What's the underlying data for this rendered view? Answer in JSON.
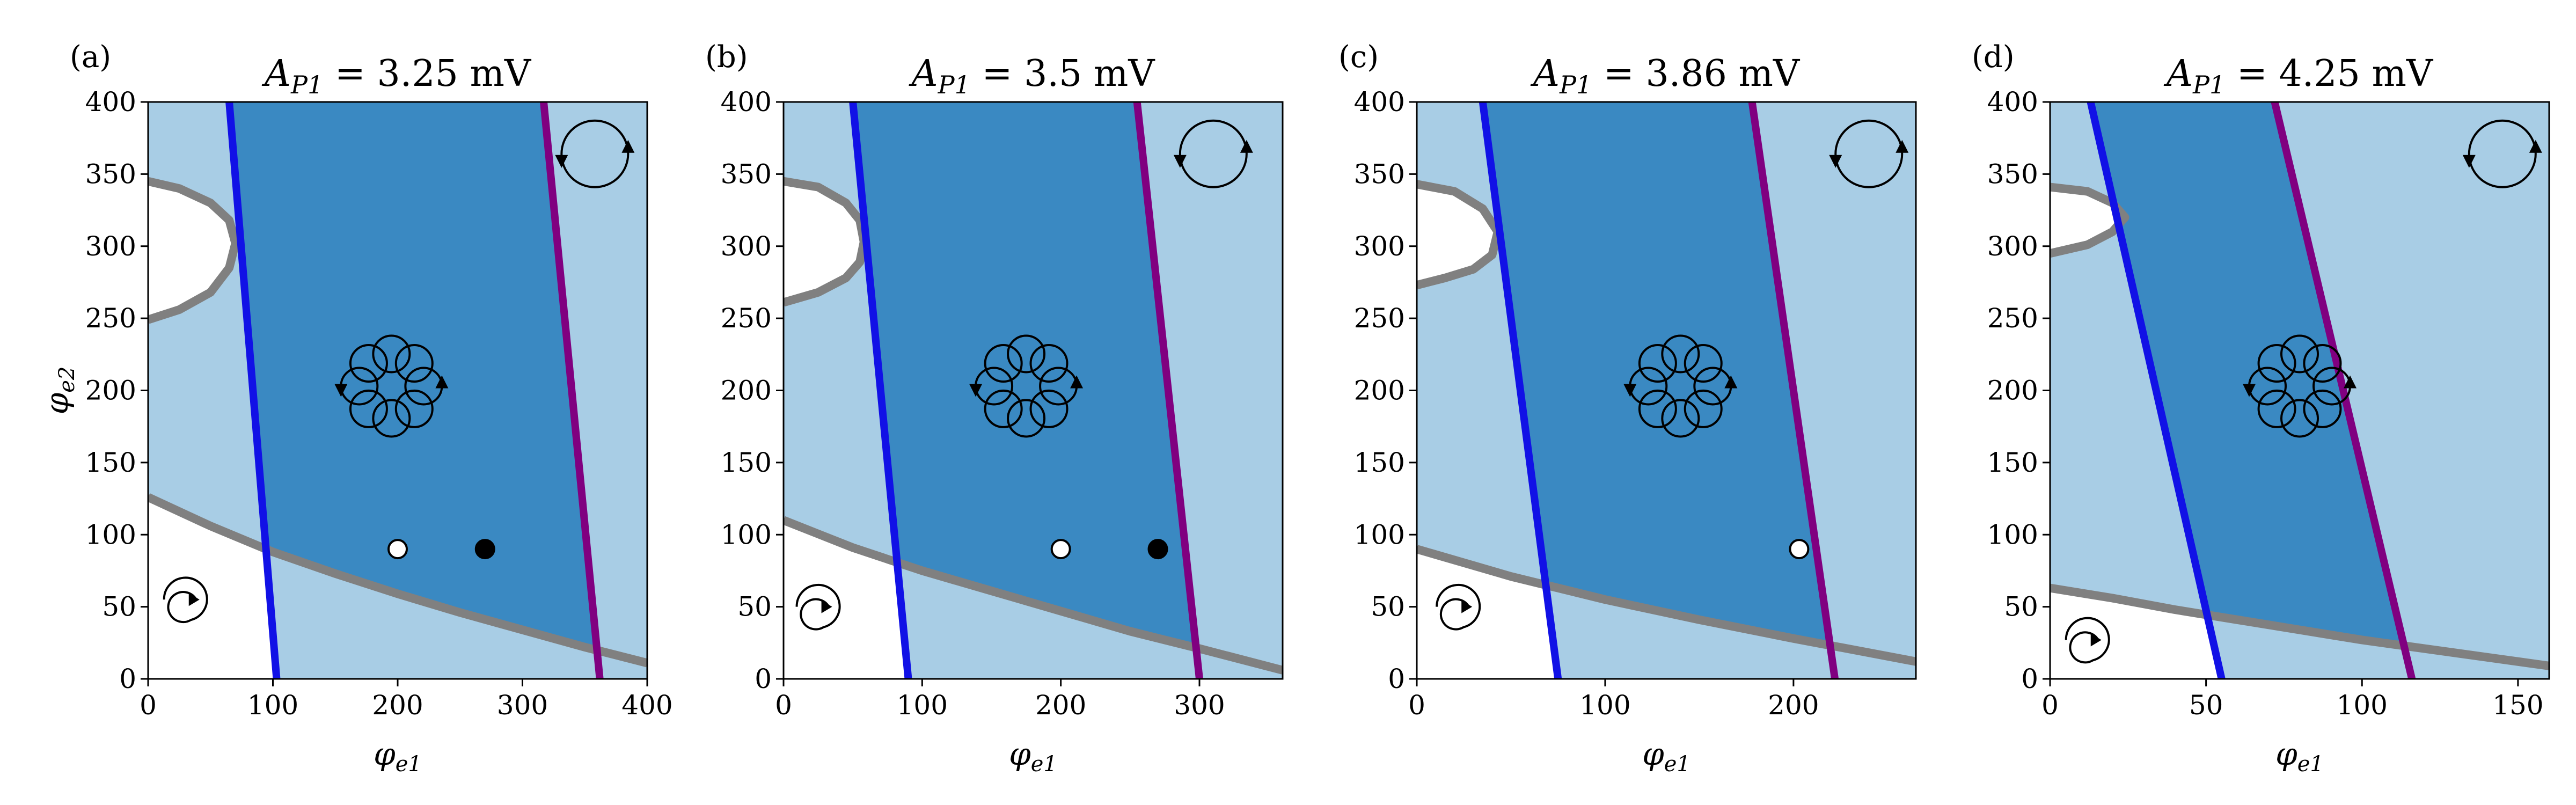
{
  "colors": {
    "light_region": "#a8cde5",
    "dark_region": "#3a89c2",
    "blue_line": "#1111e6",
    "purple_line": "#800080",
    "gray_curve": "#808080",
    "background": "#ffffff"
  },
  "chart_data": [
    {
      "type": "phase-diagram",
      "label": "(a)",
      "title": "A_{P1} = 3.25 mV",
      "title_symbol": "A",
      "title_sub": "P1",
      "title_value": "= 3.25 mV",
      "xlabel": "φ_e1",
      "ylabel": "φ_e2",
      "xlim": [
        0,
        400
      ],
      "ylim": [
        0,
        400
      ],
      "xticks": [
        "0",
        "100",
        "200",
        "300",
        "400"
      ],
      "yticks": [
        "0",
        "50",
        "100",
        "150",
        "200",
        "250",
        "300",
        "350",
        "400"
      ],
      "blue_line": [
        [
          65,
          400
        ],
        [
          103,
          0
        ]
      ],
      "purple_line": [
        [
          317,
          400
        ],
        [
          362,
          0
        ]
      ],
      "lower_curve": [
        [
          0,
          126
        ],
        [
          50,
          106
        ],
        [
          100,
          88
        ],
        [
          150,
          73
        ],
        [
          200,
          59
        ],
        [
          250,
          46
        ],
        [
          300,
          34
        ],
        [
          350,
          22
        ],
        [
          400,
          11
        ]
      ],
      "upper_curve": [
        [
          0,
          345
        ],
        [
          25,
          340
        ],
        [
          50,
          330
        ],
        [
          65,
          318
        ],
        [
          70,
          302
        ],
        [
          65,
          285
        ],
        [
          50,
          268
        ],
        [
          25,
          256
        ],
        [
          0,
          249
        ]
      ],
      "open_point": [
        200,
        90
      ],
      "filled_point": [
        270,
        90
      ],
      "icons": {
        "rotor": [
          358,
          364
        ],
        "flower": [
          195,
          203
        ],
        "spiral": [
          30,
          55
        ]
      }
    },
    {
      "type": "phase-diagram",
      "label": "(b)",
      "title": "A_{P1} = 3.5 mV",
      "title_symbol": "A",
      "title_sub": "P1",
      "title_value": "= 3.5 mV",
      "xlabel": "φ_e1",
      "ylabel": "",
      "xlim": [
        0,
        360
      ],
      "ylim": [
        0,
        400
      ],
      "xticks": [
        "0",
        "100",
        "200",
        "300"
      ],
      "yticks": [
        "0",
        "50",
        "100",
        "150",
        "200",
        "250",
        "300",
        "350",
        "400"
      ],
      "blue_line": [
        [
          50,
          400
        ],
        [
          90,
          0
        ]
      ],
      "purple_line": [
        [
          255,
          400
        ],
        [
          300,
          0
        ]
      ],
      "lower_curve": [
        [
          0,
          110
        ],
        [
          50,
          91
        ],
        [
          100,
          75
        ],
        [
          150,
          61
        ],
        [
          200,
          47
        ],
        [
          250,
          33
        ],
        [
          300,
          21
        ],
        [
          360,
          6
        ]
      ],
      "upper_curve": [
        [
          0,
          345
        ],
        [
          25,
          341
        ],
        [
          45,
          330
        ],
        [
          55,
          318
        ],
        [
          58,
          303
        ],
        [
          55,
          289
        ],
        [
          45,
          278
        ],
        [
          25,
          268
        ],
        [
          0,
          261
        ]
      ],
      "open_point": [
        200,
        90
      ],
      "filled_point": [
        270,
        90
      ],
      "icons": {
        "rotor": [
          310,
          364
        ],
        "flower": [
          175,
          203
        ],
        "spiral": [
          25,
          50
        ]
      }
    },
    {
      "type": "phase-diagram",
      "label": "(c)",
      "title": "A_{P1} = 3.86 mV",
      "title_symbol": "A",
      "title_sub": "P1",
      "title_value": "= 3.86 mV",
      "xlabel": "φ_e1",
      "ylabel": "",
      "xlim": [
        0,
        265
      ],
      "ylim": [
        0,
        400
      ],
      "xticks": [
        "0",
        "100",
        "200"
      ],
      "yticks": [
        "0",
        "50",
        "100",
        "150",
        "200",
        "250",
        "300",
        "350",
        "400"
      ],
      "blue_line": [
        [
          35,
          400
        ],
        [
          75,
          0
        ]
      ],
      "purple_line": [
        [
          178,
          400
        ],
        [
          222,
          0
        ]
      ],
      "lower_curve": [
        [
          0,
          90
        ],
        [
          50,
          71
        ],
        [
          100,
          55
        ],
        [
          150,
          41
        ],
        [
          200,
          28
        ],
        [
          265,
          12
        ]
      ],
      "upper_curve": [
        [
          0,
          343
        ],
        [
          20,
          338
        ],
        [
          35,
          326
        ],
        [
          43,
          310
        ],
        [
          40,
          294
        ],
        [
          30,
          284
        ],
        [
          15,
          278
        ],
        [
          0,
          273
        ]
      ],
      "open_point": [
        203,
        90
      ],
      "icons": {
        "rotor": [
          240,
          364
        ],
        "flower": [
          140,
          203
        ],
        "spiral": [
          22,
          50
        ]
      }
    },
    {
      "type": "phase-diagram",
      "label": "(d)",
      "title": "A_{P1} = 4.25 mV",
      "title_symbol": "A",
      "title_sub": "P1",
      "title_value": "= 4.25 mV",
      "xlabel": "φ_e1",
      "ylabel": "",
      "xlim": [
        0,
        160
      ],
      "ylim": [
        0,
        400
      ],
      "xticks": [
        "0",
        "50",
        "100",
        "150"
      ],
      "yticks": [
        "0",
        "50",
        "100",
        "150",
        "200",
        "250",
        "300",
        "350",
        "400"
      ],
      "blue_line": [
        [
          13,
          400
        ],
        [
          55,
          0
        ]
      ],
      "purple_line": [
        [
          72,
          400
        ],
        [
          116,
          0
        ]
      ],
      "lower_curve": [
        [
          0,
          63
        ],
        [
          20,
          56
        ],
        [
          40,
          48
        ],
        [
          60,
          41
        ],
        [
          80,
          34
        ],
        [
          100,
          27
        ],
        [
          120,
          21
        ],
        [
          140,
          15
        ],
        [
          160,
          9
        ]
      ],
      "upper_curve": [
        [
          0,
          341
        ],
        [
          12,
          338
        ],
        [
          20,
          330
        ],
        [
          24,
          320
        ],
        [
          20,
          310
        ],
        [
          12,
          301
        ],
        [
          0,
          295
        ]
      ],
      "icons": {
        "rotor": [
          145,
          364
        ],
        "flower": [
          80,
          203
        ],
        "spiral": [
          12,
          27
        ]
      }
    }
  ]
}
